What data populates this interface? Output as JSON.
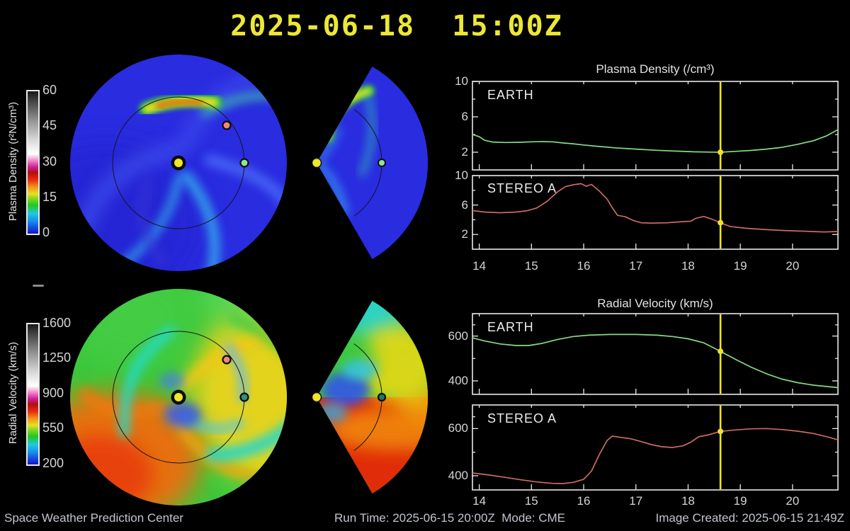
{
  "title": "2025-06-18  15:00Z",
  "footer": {
    "left": "Space Weather Prediction Center",
    "run_time": "Run Time: 2025-06-15 20:00Z",
    "mode": "Mode: CME",
    "created": "Image Created: 2025-06-15 21:49Z"
  },
  "colorbars": {
    "density": {
      "label": "Plasma Density (r²N/cm³)",
      "ticks": [
        "60",
        "45",
        "30",
        "15",
        "0"
      ]
    },
    "velocity": {
      "label": "Radial Velocity (km/s)",
      "ticks": [
        "1600",
        "1250",
        "900",
        "550",
        "200"
      ]
    }
  },
  "colors": {
    "background": "#000000",
    "title_yellow": "#ece832",
    "axis_gray": "#e8e8e8",
    "label_gray": "#d4d4d4",
    "footer_gray": "#c2c4cf",
    "earth_line": "#84dc84",
    "stereo_line": "#cc6868",
    "event_yellow": "#f0e228",
    "sun_yellow": "#f2e428",
    "earth_dot": "#8ce88c",
    "stereo_dot": "#ee8877",
    "earth_dot_velocity": "#2f8f78",
    "density_base": "#2a2ce0",
    "velocity_base": "#3cc83c",
    "orbit_line": "#141420"
  },
  "chart_data": [
    {
      "type": "line",
      "panel": "density-earth",
      "title": "Plasma Density (/cm³)",
      "label": "EARTH",
      "color_key": "earth_line",
      "xlim": [
        13.87,
        20.87
      ],
      "ylim": [
        0,
        10
      ],
      "xticks": [
        14,
        15,
        16,
        17,
        18,
        19,
        20
      ],
      "yticks_major": [
        2,
        6,
        10
      ],
      "yticks_minor": [
        4,
        8
      ],
      "show_xlabels": false,
      "event_x": 18.62,
      "event_y": 2.0,
      "points": [
        [
          13.87,
          4.0
        ],
        [
          14.0,
          3.75
        ],
        [
          14.1,
          3.35
        ],
        [
          14.25,
          3.15
        ],
        [
          14.5,
          3.1
        ],
        [
          14.75,
          3.12
        ],
        [
          15.0,
          3.18
        ],
        [
          15.2,
          3.2
        ],
        [
          15.4,
          3.18
        ],
        [
          15.6,
          3.05
        ],
        [
          15.8,
          2.95
        ],
        [
          16.0,
          2.82
        ],
        [
          16.3,
          2.65
        ],
        [
          16.6,
          2.5
        ],
        [
          17.0,
          2.35
        ],
        [
          17.4,
          2.22
        ],
        [
          17.8,
          2.12
        ],
        [
          18.1,
          2.05
        ],
        [
          18.4,
          2.02
        ],
        [
          18.62,
          2.0
        ],
        [
          18.9,
          2.1
        ],
        [
          19.2,
          2.2
        ],
        [
          19.5,
          2.35
        ],
        [
          19.8,
          2.55
        ],
        [
          20.1,
          2.9
        ],
        [
          20.4,
          3.3
        ],
        [
          20.65,
          3.85
        ],
        [
          20.87,
          4.55
        ]
      ]
    },
    {
      "type": "line",
      "panel": "density-stereo-a",
      "label": "STEREO A",
      "color_key": "stereo_line",
      "xlim": [
        13.87,
        20.87
      ],
      "ylim": [
        0,
        10
      ],
      "xticks": [
        14,
        15,
        16,
        17,
        18,
        19,
        20
      ],
      "yticks_major": [
        2,
        6,
        10
      ],
      "yticks_minor": [
        4,
        8
      ],
      "show_xlabels": true,
      "event_x": 18.62,
      "event_y": 3.6,
      "points": [
        [
          13.87,
          5.25
        ],
        [
          14.1,
          5.05
        ],
        [
          14.4,
          4.95
        ],
        [
          14.7,
          5.05
        ],
        [
          14.9,
          5.2
        ],
        [
          15.1,
          5.6
        ],
        [
          15.3,
          6.5
        ],
        [
          15.5,
          7.8
        ],
        [
          15.65,
          8.5
        ],
        [
          15.8,
          8.75
        ],
        [
          15.95,
          8.9
        ],
        [
          16.05,
          8.55
        ],
        [
          16.15,
          8.8
        ],
        [
          16.3,
          7.9
        ],
        [
          16.45,
          6.8
        ],
        [
          16.55,
          5.6
        ],
        [
          16.65,
          4.6
        ],
        [
          16.8,
          4.4
        ],
        [
          16.95,
          3.9
        ],
        [
          17.1,
          3.6
        ],
        [
          17.3,
          3.55
        ],
        [
          17.6,
          3.6
        ],
        [
          17.9,
          3.75
        ],
        [
          18.05,
          3.8
        ],
        [
          18.15,
          4.2
        ],
        [
          18.3,
          4.45
        ],
        [
          18.45,
          4.1
        ],
        [
          18.62,
          3.6
        ],
        [
          18.8,
          3.1
        ],
        [
          19.1,
          2.85
        ],
        [
          19.4,
          2.7
        ],
        [
          19.8,
          2.55
        ],
        [
          20.2,
          2.45
        ],
        [
          20.6,
          2.35
        ],
        [
          20.87,
          2.4
        ]
      ]
    },
    {
      "type": "line",
      "panel": "velocity-earth",
      "title": "Radial Velocity (km/s)",
      "label": "EARTH",
      "color_key": "earth_line",
      "xlim": [
        13.87,
        20.87
      ],
      "ylim": [
        340,
        700
      ],
      "xticks": [
        14,
        15,
        16,
        17,
        18,
        19,
        20
      ],
      "yticks_major": [
        400,
        600
      ],
      "yticks_minor": [
        500,
        650
      ],
      "show_xlabels": false,
      "event_x": 18.62,
      "event_y": 532,
      "points": [
        [
          13.87,
          592
        ],
        [
          14.1,
          578
        ],
        [
          14.4,
          565
        ],
        [
          14.7,
          558
        ],
        [
          14.95,
          558
        ],
        [
          15.2,
          567
        ],
        [
          15.5,
          585
        ],
        [
          15.8,
          598
        ],
        [
          16.1,
          604
        ],
        [
          16.5,
          607
        ],
        [
          17.0,
          607
        ],
        [
          17.4,
          604
        ],
        [
          17.7,
          598
        ],
        [
          18.0,
          588
        ],
        [
          18.3,
          570
        ],
        [
          18.62,
          532
        ],
        [
          18.9,
          497
        ],
        [
          19.2,
          462
        ],
        [
          19.5,
          432
        ],
        [
          19.8,
          408
        ],
        [
          20.1,
          392
        ],
        [
          20.4,
          381
        ],
        [
          20.65,
          375
        ],
        [
          20.87,
          370
        ]
      ]
    },
    {
      "type": "line",
      "panel": "velocity-stereo-a",
      "label": "STEREO A",
      "color_key": "stereo_line",
      "xlim": [
        13.87,
        20.87
      ],
      "ylim": [
        340,
        700
      ],
      "xticks": [
        14,
        15,
        16,
        17,
        18,
        19,
        20
      ],
      "yticks_major": [
        400,
        600
      ],
      "yticks_minor": [
        500,
        650
      ],
      "show_xlabels": true,
      "event_x": 18.62,
      "event_y": 588,
      "points": [
        [
          13.87,
          412
        ],
        [
          14.2,
          403
        ],
        [
          14.5,
          393
        ],
        [
          14.8,
          383
        ],
        [
          15.1,
          374
        ],
        [
          15.4,
          368
        ],
        [
          15.6,
          367
        ],
        [
          15.8,
          372
        ],
        [
          16.0,
          385
        ],
        [
          16.15,
          420
        ],
        [
          16.3,
          490
        ],
        [
          16.45,
          550
        ],
        [
          16.55,
          568
        ],
        [
          16.7,
          563
        ],
        [
          16.9,
          557
        ],
        [
          17.1,
          545
        ],
        [
          17.3,
          532
        ],
        [
          17.5,
          523
        ],
        [
          17.7,
          520
        ],
        [
          17.9,
          527
        ],
        [
          18.05,
          542
        ],
        [
          18.2,
          565
        ],
        [
          18.4,
          574
        ],
        [
          18.62,
          588
        ],
        [
          18.9,
          594
        ],
        [
          19.2,
          599
        ],
        [
          19.5,
          600
        ],
        [
          19.8,
          596
        ],
        [
          20.1,
          589
        ],
        [
          20.4,
          579
        ],
        [
          20.7,
          563
        ],
        [
          20.87,
          552
        ]
      ]
    }
  ]
}
